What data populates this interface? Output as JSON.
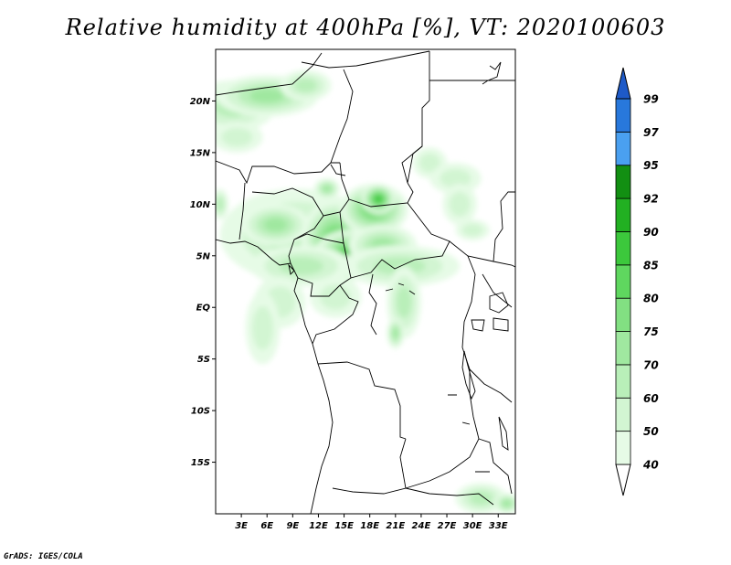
{
  "title": "Relative humidity at 400hPa [%], VT: 2020100603",
  "credit": "GrADS: IGES/COLA",
  "map": {
    "lon_range": [
      0,
      35
    ],
    "lat_range": [
      -20,
      25
    ],
    "lat_ticks": [
      {
        "value": 20,
        "label": "20N"
      },
      {
        "value": 15,
        "label": "15N"
      },
      {
        "value": 10,
        "label": "10N"
      },
      {
        "value": 5,
        "label": "5N"
      },
      {
        "value": 0,
        "label": "EQ"
      },
      {
        "value": -5,
        "label": "5S"
      },
      {
        "value": -10,
        "label": "10S"
      },
      {
        "value": -15,
        "label": "15S"
      }
    ],
    "lon_ticks": [
      {
        "value": 3,
        "label": "3E"
      },
      {
        "value": 6,
        "label": "6E"
      },
      {
        "value": 9,
        "label": "9E"
      },
      {
        "value": 12,
        "label": "12E"
      },
      {
        "value": 15,
        "label": "15E"
      },
      {
        "value": 18,
        "label": "18E"
      },
      {
        "value": 21,
        "label": "21E"
      },
      {
        "value": 24,
        "label": "24E"
      },
      {
        "value": 27,
        "label": "27E"
      },
      {
        "value": 30,
        "label": "30E"
      },
      {
        "value": 33,
        "label": "33E"
      }
    ]
  },
  "colorbar": {
    "levels": [
      "40",
      "50",
      "60",
      "70",
      "75",
      "80",
      "85",
      "90",
      "92",
      "95",
      "97",
      "99"
    ],
    "colors": [
      "#ffffff",
      "#e6fbe6",
      "#d2f5d2",
      "#b9efb9",
      "#a0e8a0",
      "#82e082",
      "#5fd75f",
      "#3cc83c",
      "#22b022",
      "#128f12",
      "#4aa0f0",
      "#2878dc",
      "#1e5ac8"
    ]
  },
  "humidity_blobs": [
    {
      "lon": 2.0,
      "lat": 19.5,
      "rx": 5,
      "ry": 2.5,
      "rh": 60
    },
    {
      "lon": 6.0,
      "lat": 20.5,
      "rx": 6,
      "ry": 2.0,
      "rh": 70
    },
    {
      "lon": 10.5,
      "lat": 21.5,
      "rx": 3,
      "ry": 1.5,
      "rh": 60
    },
    {
      "lon": 2.5,
      "lat": 16.5,
      "rx": 3,
      "ry": 1.5,
      "rh": 50
    },
    {
      "lon": 9.5,
      "lat": 7.0,
      "rx": 9,
      "ry": 4.5,
      "rh": 60
    },
    {
      "lon": 7.0,
      "lat": 8.0,
      "rx": 4,
      "ry": 2.0,
      "rh": 70
    },
    {
      "lon": 14.0,
      "lat": 6.5,
      "rx": 4,
      "ry": 4.0,
      "rh": 80
    },
    {
      "lon": 15.5,
      "lat": 5.0,
      "rx": 4,
      "ry": 2.5,
      "rh": 85
    },
    {
      "lon": 18.5,
      "lat": 9.5,
      "rx": 4,
      "ry": 2.5,
      "rh": 80
    },
    {
      "lon": 19.0,
      "lat": 10.5,
      "rx": 2,
      "ry": 1.5,
      "rh": 85
    },
    {
      "lon": 19.5,
      "lat": 6.0,
      "rx": 4,
      "ry": 2.0,
      "rh": 70
    },
    {
      "lon": 21.5,
      "lat": 4.0,
      "rx": 7,
      "ry": 2.0,
      "rh": 60
    },
    {
      "lon": 10.0,
      "lat": 4.0,
      "rx": 6,
      "ry": 2.0,
      "rh": 60
    },
    {
      "lon": 7.5,
      "lat": 0.5,
      "rx": 3,
      "ry": 2.5,
      "rh": 50
    },
    {
      "lon": 5.5,
      "lat": -2.0,
      "rx": 2,
      "ry": 3.5,
      "rh": 50
    },
    {
      "lon": 14.0,
      "lat": 1.0,
      "rx": 3,
      "ry": 2.0,
      "rh": 50
    },
    {
      "lon": 22.0,
      "lat": 0.5,
      "rx": 2,
      "ry": 3.5,
      "rh": 60
    },
    {
      "lon": 21.0,
      "lat": -2.5,
      "rx": 1,
      "ry": 1.5,
      "rh": 70
    },
    {
      "lon": 25.0,
      "lat": 14.0,
      "rx": 2,
      "ry": 1.5,
      "rh": 50
    },
    {
      "lon": 28.0,
      "lat": 12.5,
      "rx": 3,
      "ry": 1.5,
      "rh": 50
    },
    {
      "lon": 28.5,
      "lat": 10.0,
      "rx": 2,
      "ry": 2.0,
      "rh": 50
    },
    {
      "lon": 30.0,
      "lat": 7.5,
      "rx": 2,
      "ry": 1.0,
      "rh": 50
    },
    {
      "lon": 31.0,
      "lat": -18.5,
      "rx": 3,
      "ry": 1.5,
      "rh": 60
    },
    {
      "lon": 34.0,
      "lat": -19.0,
      "rx": 1.5,
      "ry": 1.0,
      "rh": 70
    },
    {
      "lon": 13.0,
      "lat": 11.5,
      "rx": 1.5,
      "ry": 1.0,
      "rh": 70
    },
    {
      "lon": 0.5,
      "lat": 10.0,
      "rx": 1,
      "ry": 1.5,
      "rh": 60
    }
  ]
}
